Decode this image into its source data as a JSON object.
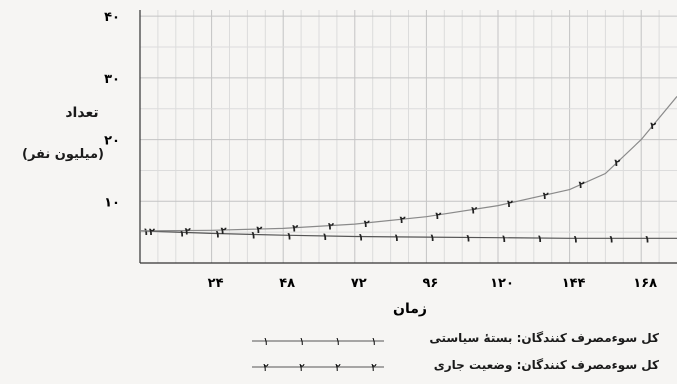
{
  "chart_data": {
    "type": "line",
    "ylabel": "تعداد",
    "ylabel_unit": "(میلیون نفر)",
    "xlabel": "زمان",
    "xticks": [
      24,
      48,
      72,
      96,
      120,
      144,
      168
    ],
    "xtick_labels": [
      "۲۴",
      "۴۸",
      "۷۲",
      "۹۶",
      "۱۲۰",
      "۱۴۴",
      "۱۶۸"
    ],
    "yticks": [
      10,
      20,
      30,
      40
    ],
    "ytick_labels": [
      "۱۰",
      "۲۰",
      "۳۰",
      "۴۰"
    ],
    "xlim": [
      0,
      180
    ],
    "ylim": [
      0,
      41
    ],
    "grid": true,
    "legend_position": "bottom",
    "series": [
      {
        "name": "کل سوءمصرف کنندگان: بستهٔ سیاستی",
        "marker": "۱",
        "color": "#555555",
        "x": [
          0,
          24,
          48,
          72,
          96,
          120,
          144,
          168,
          180
        ],
        "y": [
          5.2,
          4.8,
          4.5,
          4.3,
          4.2,
          4.1,
          4.0,
          4.0,
          4.0
        ]
      },
      {
        "name": "کل سوءمصرف کنندگان: وضعیت جاری",
        "marker": "۲",
        "color": "#8a8a8a",
        "x": [
          0,
          24,
          48,
          72,
          96,
          120,
          144,
          156,
          168,
          180
        ],
        "y": [
          5.2,
          5.3,
          5.6,
          6.3,
          7.5,
          9.3,
          11.9,
          14.5,
          20.0,
          27.0
        ]
      }
    ]
  }
}
